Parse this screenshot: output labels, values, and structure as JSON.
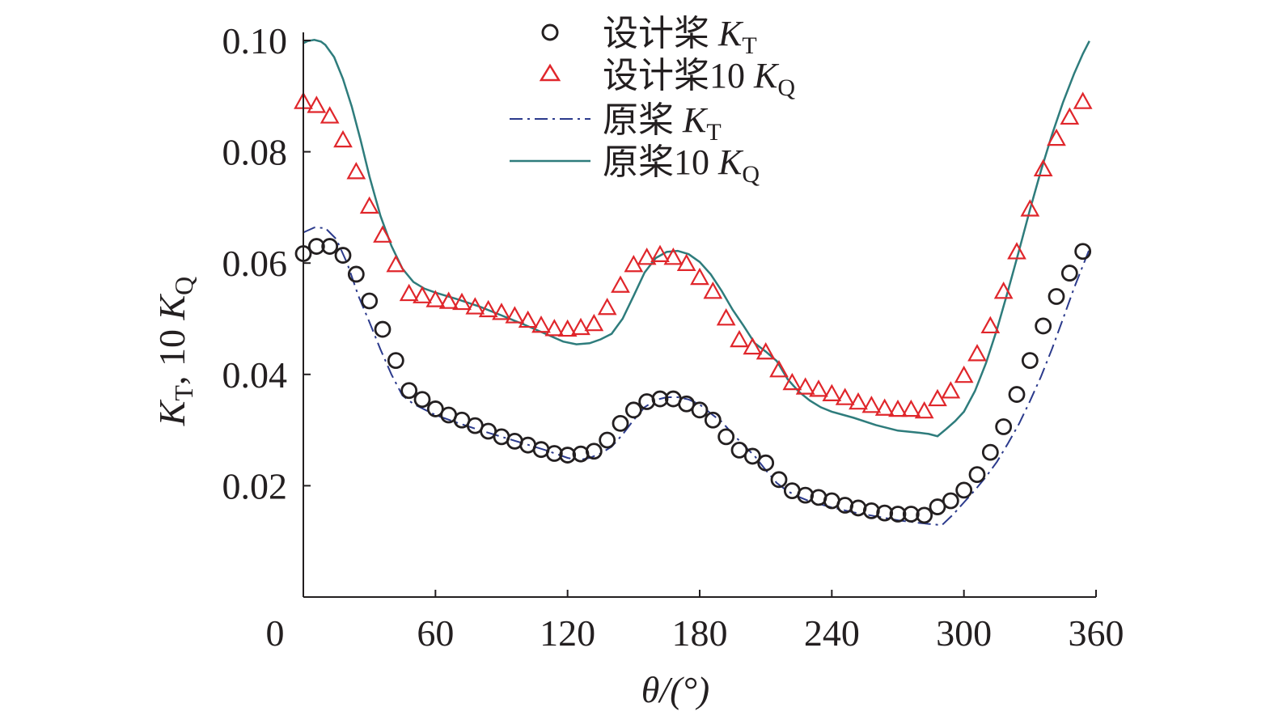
{
  "chart_data": {
    "type": "line",
    "title": "",
    "xlabel": "θ/(°)",
    "ylabel": "K_T, 10 K_Q",
    "ylabel_parts": {
      "k1": "K",
      "sub1": "T",
      "mid": ", 10 ",
      "k2": "K",
      "sub2": "Q"
    },
    "xlim": [
      0,
      360
    ],
    "ylim": [
      0,
      0.1
    ],
    "x_ticks": [
      0,
      60,
      120,
      180,
      240,
      300,
      360
    ],
    "x_tick_labels": [
      "0",
      "60",
      "120",
      "180",
      "240",
      "300",
      "360"
    ],
    "y_ticks": [
      0.02,
      0.04,
      0.06,
      0.08,
      0.1
    ],
    "y_tick_labels": [
      "0.02",
      "0.04",
      "0.06",
      "0.08",
      "0.10"
    ],
    "grid": false,
    "legend_position": "top-center",
    "colors": {
      "axis": "#231f20",
      "design_kt": "#231f20",
      "design_kq": "#e0262b",
      "orig_kt": "#2b3a8c",
      "orig_kq": "#2e7c7c"
    },
    "series": [
      {
        "name": "设计桨 K_T",
        "legend": {
          "text": "设计桨 ",
          "k": "K",
          "sub": "T"
        },
        "style": "circle-markers",
        "x": [
          0,
          6,
          12,
          18,
          24,
          30,
          36,
          42,
          48,
          54,
          60,
          66,
          72,
          78,
          84,
          90,
          96,
          102,
          108,
          114,
          120,
          126,
          132,
          138,
          144,
          150,
          156,
          162,
          168,
          174,
          180,
          186,
          192,
          198,
          204,
          210,
          216,
          222,
          228,
          234,
          240,
          246,
          252,
          258,
          264,
          270,
          276,
          282,
          288,
          294,
          300,
          306,
          312,
          318,
          324,
          330,
          336,
          342,
          348,
          354
        ],
        "values": [
          0.0617,
          0.063,
          0.063,
          0.0614,
          0.058,
          0.0532,
          0.0481,
          0.0425,
          0.0371,
          0.0355,
          0.0338,
          0.0327,
          0.0318,
          0.0308,
          0.0298,
          0.0288,
          0.028,
          0.0273,
          0.0265,
          0.0258,
          0.0255,
          0.0257,
          0.0262,
          0.0282,
          0.0312,
          0.0336,
          0.0351,
          0.0356,
          0.0356,
          0.0347,
          0.0336,
          0.0318,
          0.0288,
          0.0264,
          0.0253,
          0.0241,
          0.0211,
          0.0191,
          0.0183,
          0.0179,
          0.0173,
          0.0165,
          0.016,
          0.0155,
          0.0151,
          0.0149,
          0.0149,
          0.0147,
          0.0162,
          0.0173,
          0.0192,
          0.022,
          0.026,
          0.0306,
          0.0364,
          0.0425,
          0.0487,
          0.054,
          0.0582,
          0.0621
        ]
      },
      {
        "name": "设计桨10 K_Q",
        "legend": {
          "text": "设计桨10 ",
          "k": "K",
          "sub": "Q"
        },
        "style": "triangle-markers",
        "x": [
          0,
          6,
          12,
          18,
          24,
          30,
          36,
          42,
          48,
          54,
          60,
          66,
          72,
          78,
          84,
          90,
          96,
          102,
          108,
          114,
          120,
          126,
          132,
          138,
          144,
          150,
          156,
          162,
          168,
          174,
          180,
          186,
          192,
          198,
          204,
          210,
          216,
          222,
          228,
          234,
          240,
          246,
          252,
          258,
          264,
          270,
          276,
          282,
          288,
          294,
          300,
          306,
          312,
          318,
          324,
          330,
          336,
          342,
          348,
          354
        ],
        "values": [
          0.089,
          0.0883,
          0.0864,
          0.0821,
          0.0764,
          0.0702,
          0.065,
          0.0597,
          0.0545,
          0.0541,
          0.0534,
          0.0531,
          0.0529,
          0.0521,
          0.0516,
          0.0511,
          0.0505,
          0.0497,
          0.0488,
          0.0482,
          0.0481,
          0.0484,
          0.0491,
          0.052,
          0.056,
          0.0597,
          0.061,
          0.0615,
          0.061,
          0.0599,
          0.0574,
          0.0549,
          0.0501,
          0.0462,
          0.0449,
          0.044,
          0.0408,
          0.0385,
          0.0377,
          0.0373,
          0.0365,
          0.0358,
          0.035,
          0.0344,
          0.0339,
          0.0337,
          0.0337,
          0.0334,
          0.0356,
          0.037,
          0.0398,
          0.0437,
          0.0487,
          0.0549,
          0.062,
          0.0697,
          0.0769,
          0.0824,
          0.0862,
          0.089
        ]
      },
      {
        "name": "原桨 K_T",
        "legend": {
          "text": "原桨 ",
          "k": "K",
          "sub": "T"
        },
        "style": "dash-dot",
        "x": [
          0,
          5,
          10,
          15,
          20,
          25,
          30,
          35,
          40,
          45,
          50,
          60,
          70,
          80,
          90,
          100,
          110,
          120,
          125,
          130,
          135,
          140,
          145,
          150,
          155,
          160,
          165,
          170,
          175,
          180,
          185,
          190,
          195,
          200,
          205,
          210,
          215,
          220,
          225,
          230,
          240,
          250,
          260,
          270,
          280,
          290,
          295,
          300,
          305,
          310,
          315,
          320,
          325,
          330,
          335,
          340,
          345,
          350,
          357
        ],
        "values": [
          0.0655,
          0.0664,
          0.0663,
          0.0643,
          0.0599,
          0.0541,
          0.0494,
          0.0445,
          0.04,
          0.0362,
          0.0347,
          0.0327,
          0.0313,
          0.03,
          0.0288,
          0.0276,
          0.0264,
          0.025,
          0.0246,
          0.025,
          0.0258,
          0.027,
          0.0292,
          0.0318,
          0.0341,
          0.0354,
          0.0359,
          0.0359,
          0.0355,
          0.0346,
          0.033,
          0.0315,
          0.0293,
          0.0273,
          0.0253,
          0.0228,
          0.0205,
          0.019,
          0.018,
          0.0172,
          0.0161,
          0.0152,
          0.0145,
          0.0138,
          0.0133,
          0.0129,
          0.0148,
          0.017,
          0.0192,
          0.0216,
          0.0243,
          0.0276,
          0.0311,
          0.0352,
          0.0396,
          0.0446,
          0.05,
          0.0555,
          0.0625
        ]
      },
      {
        "name": "原桨10 K_Q",
        "legend": {
          "text": "原桨10 ",
          "k": "K",
          "sub": "Q"
        },
        "style": "solid",
        "x": [
          0,
          2,
          5,
          8,
          10,
          14,
          18,
          22,
          26,
          30,
          35,
          40,
          45,
          50,
          55,
          60,
          70,
          80,
          90,
          100,
          110,
          118,
          124,
          130,
          135,
          140,
          145,
          150,
          155,
          160,
          165,
          170,
          175,
          180,
          185,
          190,
          195,
          200,
          205,
          210,
          215,
          220,
          225,
          230,
          235,
          240,
          250,
          260,
          270,
          280,
          284,
          288,
          292,
          296,
          300,
          305,
          310,
          315,
          320,
          325,
          330,
          335,
          340,
          345,
          350,
          354,
          357
        ],
        "values": [
          0.0995,
          0.0999,
          0.1001,
          0.0998,
          0.0992,
          0.097,
          0.0931,
          0.0881,
          0.0821,
          0.0756,
          0.0685,
          0.0631,
          0.059,
          0.0566,
          0.0554,
          0.0547,
          0.0535,
          0.0522,
          0.0506,
          0.049,
          0.0473,
          0.0459,
          0.0454,
          0.0456,
          0.0463,
          0.0473,
          0.05,
          0.0541,
          0.0583,
          0.0609,
          0.062,
          0.0622,
          0.0616,
          0.0602,
          0.058,
          0.055,
          0.0516,
          0.0487,
          0.0456,
          0.0441,
          0.0424,
          0.0391,
          0.0369,
          0.0353,
          0.0341,
          0.0333,
          0.0322,
          0.0309,
          0.0299,
          0.0295,
          0.0293,
          0.0289,
          0.0302,
          0.0316,
          0.0333,
          0.037,
          0.042,
          0.0481,
          0.055,
          0.0622,
          0.0696,
          0.0766,
          0.0831,
          0.0889,
          0.094,
          0.0976,
          0.0999
        ]
      }
    ]
  }
}
